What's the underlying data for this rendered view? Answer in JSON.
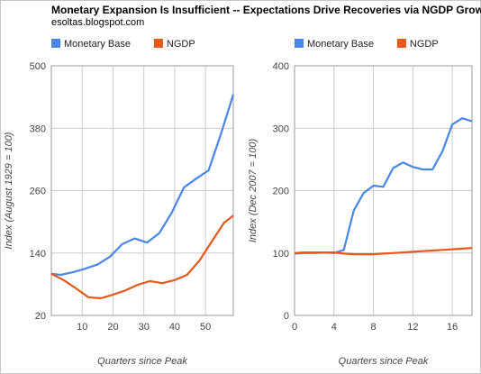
{
  "title": "Monetary Expansion Is Insufficient -- Expectations Drive Recoveries via NGDP Growth",
  "subtitle": "esoltas.blogspot.com",
  "colors": {
    "monetary_base": "#4a86e8",
    "ngdp": "#e8571c",
    "grid": "#cccccc",
    "axis_text": "#444444"
  },
  "chart_data": [
    {
      "type": "line",
      "xlabel": "Quarters since Peak",
      "ylabel": "Index (August 1929 = 100)",
      "xlim": [
        0,
        59
      ],
      "ylim": [
        20,
        500
      ],
      "xticks": [
        10,
        20,
        30,
        40,
        50
      ],
      "yticks": [
        20,
        140,
        260,
        380,
        500
      ],
      "grid": true,
      "legend": "top-left",
      "series": [
        {
          "name": "Monetary Base",
          "color_key": "monetary_base",
          "x": [
            0,
            3,
            7,
            11,
            15,
            19,
            23,
            27,
            31,
            35,
            39,
            43,
            47,
            51,
            55,
            59
          ],
          "y": [
            100,
            98,
            103,
            110,
            118,
            133,
            157,
            168,
            160,
            178,
            217,
            266,
            283,
            299,
            369,
            445
          ]
        },
        {
          "name": "NGDP",
          "color_key": "ngdp",
          "x": [
            0,
            4,
            8,
            12,
            16,
            20,
            24,
            28,
            32,
            36,
            40,
            44,
            48,
            52,
            56,
            59
          ],
          "y": [
            100,
            88,
            72,
            55,
            53,
            60,
            68,
            79,
            86,
            82,
            88,
            98,
            125,
            162,
            198,
            212
          ]
        }
      ]
    },
    {
      "type": "line",
      "xlabel": "Quarters since Peak",
      "ylabel": "Index (Dec 2007 = 100)",
      "xlim": [
        0,
        18
      ],
      "ylim": [
        0,
        400
      ],
      "xticks": [
        0,
        4,
        8,
        12,
        16
      ],
      "yticks": [
        0,
        100,
        200,
        300,
        400
      ],
      "grid": true,
      "legend": "top-left",
      "series": [
        {
          "name": "Monetary Base",
          "color_key": "monetary_base",
          "x": [
            0,
            1,
            2,
            3,
            4,
            5,
            6,
            7,
            8,
            9,
            10,
            11,
            12,
            13,
            14,
            15,
            16,
            17,
            18
          ],
          "y": [
            99,
            100,
            100,
            101,
            100,
            105,
            168,
            196,
            208,
            206,
            236,
            245,
            238,
            234,
            234,
            263,
            306,
            316,
            311
          ]
        },
        {
          "name": "NGDP",
          "color_key": "ngdp",
          "x": [
            0,
            1,
            2,
            3,
            4,
            5,
            6,
            7,
            8,
            9,
            10,
            11,
            12,
            13,
            14,
            15,
            16,
            17,
            18
          ],
          "y": [
            100,
            101,
            101,
            101,
            101,
            99,
            98,
            98,
            98,
            99,
            100,
            101,
            102,
            103,
            104,
            105,
            106,
            107,
            108
          ]
        }
      ]
    }
  ]
}
